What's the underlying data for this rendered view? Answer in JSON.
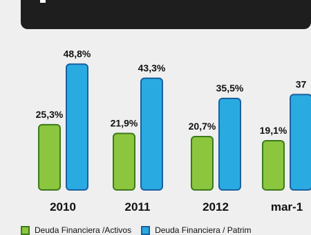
{
  "chart_data": {
    "type": "bar",
    "categories": [
      "2010",
      "2011",
      "2012",
      "mar-1"
    ],
    "series": [
      {
        "name": "Deuda Financiera /Activos",
        "values": [
          25.3,
          21.9,
          20.7,
          19.1
        ],
        "labels": [
          "25,3%",
          "21,9%",
          "20,7%",
          "19,1%"
        ]
      },
      {
        "name": "Deuda Financiera / Patrim",
        "values": [
          48.8,
          43.3,
          35.5,
          37
        ],
        "labels": [
          "48,8%",
          "43,3%",
          "35,5%",
          "37"
        ]
      }
    ],
    "colors": {
      "series0_fill": "#8cc63f",
      "series0_stroke": "#3b7a1a",
      "series1_fill": "#29abe2",
      "series1_stroke": "#1a5f9e"
    },
    "ylim": [
      0,
      55
    ],
    "grid": false,
    "legend": "bottom"
  },
  "header": {
    "color": "#1e1e1e"
  }
}
